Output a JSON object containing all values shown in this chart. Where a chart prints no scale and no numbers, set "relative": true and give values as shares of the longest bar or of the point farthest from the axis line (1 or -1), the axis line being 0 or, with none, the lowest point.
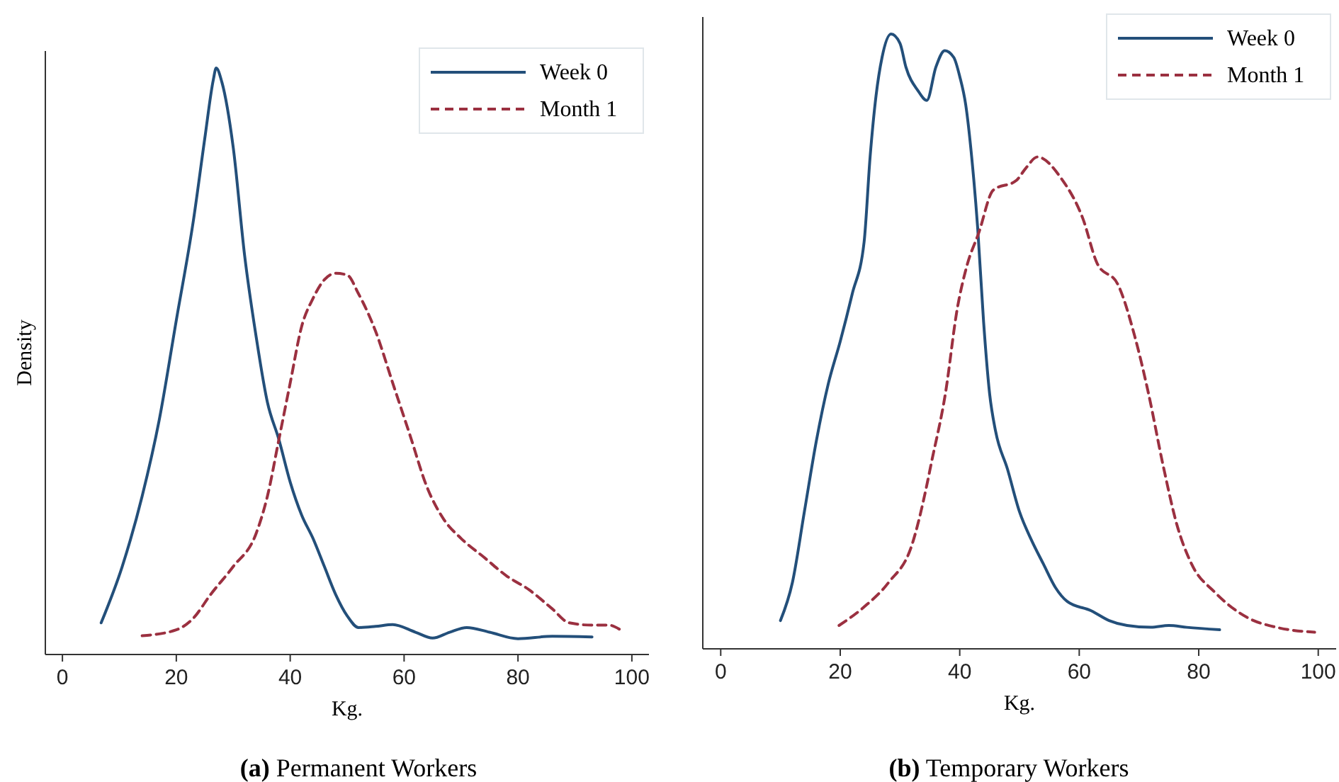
{
  "chart_data": [
    {
      "type": "line",
      "title": "(a) Permanent Workers",
      "xlabel": "Kg.",
      "ylabel": "Density",
      "relative": true,
      "xlim": [
        -3,
        103
      ],
      "xticks": [
        0,
        20,
        40,
        60,
        80,
        100
      ],
      "legend": "top right",
      "series": [
        {
          "name": "Week 0",
          "color": "#234f7a",
          "line_style": "solid",
          "x": [
            6.8,
            10.5,
            14,
            17,
            20,
            23,
            25,
            26.5,
            27,
            28,
            30,
            32,
            34,
            36,
            38,
            40,
            42,
            44,
            46,
            48,
            50,
            52,
            55,
            58,
            62,
            65,
            68,
            71,
            75,
            80,
            86,
            93
          ],
          "values": [
            0.054,
            0.15,
            0.27,
            0.4,
            0.57,
            0.74,
            0.88,
            0.98,
            1,
            0.976,
            0.864,
            0.68,
            0.543,
            0.43,
            0.367,
            0.294,
            0.238,
            0.198,
            0.15,
            0.102,
            0.066,
            0.046,
            0.048,
            0.051,
            0.038,
            0.028,
            0.038,
            0.046,
            0.038,
            0.027,
            0.031,
            0.03
          ]
        },
        {
          "name": "Month 1",
          "color": "#9b3040",
          "line_style": "dashed",
          "x": [
            14,
            20,
            23,
            26,
            30,
            34,
            36,
            38,
            40,
            42,
            44,
            46,
            48,
            50,
            52,
            55,
            58,
            61,
            64,
            67,
            70,
            74,
            78,
            82,
            86,
            89,
            93,
            96,
            98
          ],
          "values": [
            0.032,
            0.042,
            0.062,
            0.102,
            0.15,
            0.206,
            0.27,
            0.366,
            0.463,
            0.559,
            0.607,
            0.639,
            0.65,
            0.647,
            0.615,
            0.551,
            0.463,
            0.375,
            0.286,
            0.23,
            0.198,
            0.166,
            0.134,
            0.11,
            0.078,
            0.054,
            0.05,
            0.05,
            0.042
          ]
        }
      ]
    },
    {
      "type": "line",
      "title": "(b) Temporary Workers",
      "xlabel": "Kg.",
      "relative": true,
      "xlim": [
        -3,
        103
      ],
      "xticks": [
        0,
        20,
        40,
        60,
        80,
        100
      ],
      "legend": "top right",
      "series": [
        {
          "name": "Week 0",
          "color": "#234f7a",
          "line_style": "solid",
          "x": [
            10,
            12,
            14,
            16,
            18,
            20,
            22,
            24,
            25,
            26,
            27,
            28.5,
            30,
            31,
            33,
            34.5,
            36,
            37.5,
            39,
            40,
            41,
            42,
            43,
            44,
            45,
            46,
            48,
            50,
            52,
            54,
            56,
            58,
            62,
            65,
            68,
            72,
            75,
            78,
            83.5
          ],
          "values": [
            0.046,
            0.108,
            0.223,
            0.338,
            0.431,
            0.5,
            0.577,
            0.662,
            0.8,
            0.9,
            0.962,
            1,
            0.985,
            0.946,
            0.908,
            0.892,
            0.946,
            0.973,
            0.962,
            0.931,
            0.885,
            0.8,
            0.685,
            0.531,
            0.415,
            0.354,
            0.292,
            0.223,
            0.177,
            0.138,
            0.1,
            0.077,
            0.062,
            0.046,
            0.038,
            0.035,
            0.038,
            0.035,
            0.031
          ]
        },
        {
          "name": "Month 1",
          "color": "#9b3040",
          "line_style": "dashed",
          "x": [
            19.8,
            24.1,
            28.1,
            32,
            34.4,
            35.2,
            37.6,
            39.6,
            41.2,
            43.2,
            45.6,
            49.5,
            51,
            53,
            57,
            60.6,
            63,
            66.5,
            69.3,
            71.6,
            74,
            76.4,
            78.8,
            82.7,
            88.3,
            93,
            99.4
          ],
          "values": [
            0.038,
            0.069,
            0.108,
            0.169,
            0.262,
            0.3,
            0.415,
            0.554,
            0.623,
            0.677,
            0.746,
            0.762,
            0.781,
            0.8,
            0.765,
            0.7,
            0.627,
            0.592,
            0.508,
            0.415,
            0.3,
            0.2,
            0.138,
            0.092,
            0.05,
            0.035,
            0.027
          ]
        }
      ]
    }
  ]
}
